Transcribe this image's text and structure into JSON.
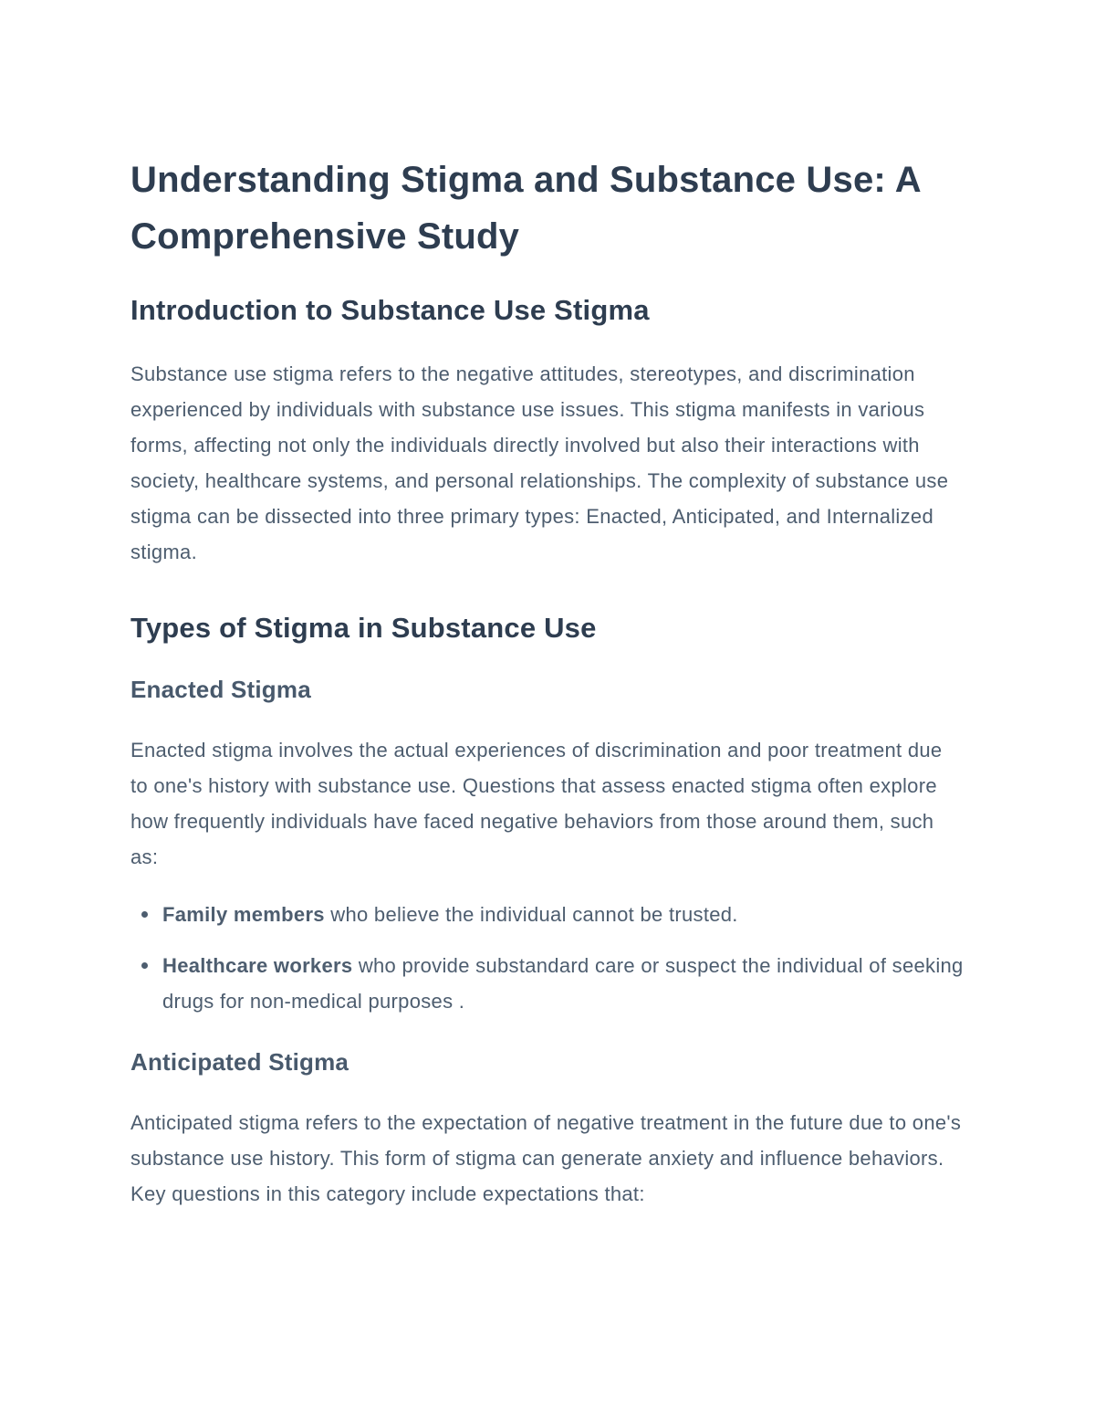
{
  "page": {
    "background_color": "#ffffff",
    "heading_color": "#2e3d50",
    "subheading_color": "#48596c",
    "body_text_color": "#4d5d6f"
  },
  "doc": {
    "title": "Understanding Stigma and Substance Use: A Comprehensive Study",
    "intro": {
      "heading": "Introduction to Substance Use Stigma",
      "paragraph": "Substance use stigma refers to the negative attitudes, stereotypes, and discrimination experienced by individuals with substance use issues. This stigma manifests in various forms, affecting not only the individuals directly involved but also their interactions with society, healthcare systems, and personal relationships. The complexity of substance use stigma can be dissected into three primary types: Enacted, Anticipated, and Internalized stigma."
    },
    "types_section": {
      "heading": "Types of Stigma in Substance Use"
    },
    "enacted": {
      "heading": "Enacted Stigma",
      "paragraph": "Enacted stigma involves the actual experiences of discrimination and poor treatment due to one's history with substance use. Questions that assess enacted stigma often explore how frequently individuals have faced negative behaviors from those around them, such as:",
      "bullets": [
        {
          "bold": "Family members",
          "rest": " who believe the individual cannot be trusted."
        },
        {
          "bold": "Healthcare workers",
          "rest": " who provide substandard care or suspect the individual of seeking drugs for non-medical purposes ."
        }
      ]
    },
    "anticipated": {
      "heading": "Anticipated Stigma",
      "paragraph": "Anticipated stigma refers to the expectation of negative treatment in the future due to one's substance use history. This form of stigma can generate anxiety and influence behaviors. Key questions in this category include expectations that:"
    }
  }
}
